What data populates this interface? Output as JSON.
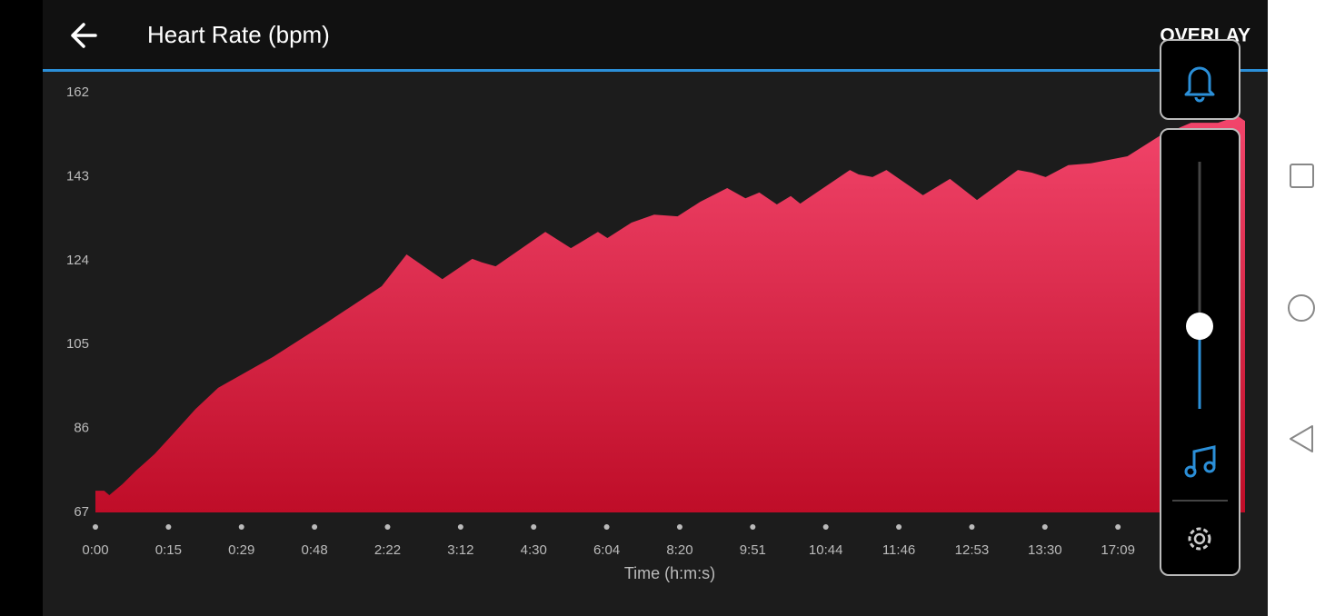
{
  "header": {
    "title": "Heart Rate (bpm)",
    "action": "OVERLAY"
  },
  "chart_data": {
    "type": "area",
    "x_label": "Time (h:m:s)",
    "x": [
      0,
      0.12,
      0.19,
      0.37,
      0.56,
      0.81,
      1.06,
      1.37,
      1.68,
      2.43,
      3.17,
      3.92,
      4.26,
      4.75,
      5.16,
      5.29,
      5.48,
      6.16,
      6.51,
      6.88,
      7.01,
      7.34,
      7.65,
      7.97,
      8.28,
      8.65,
      8.9,
      9.09,
      9.33,
      9.52,
      9.65,
      10.33,
      10.45,
      10.64,
      10.83,
      11.33,
      11.7,
      12.07,
      12.63,
      12.82,
      13.01,
      13.32,
      13.63,
      14.13,
      14.56,
      15.0,
      15.37,
      15.64,
      15.74
    ],
    "values": [
      71.9,
      71.9,
      70.9,
      73.4,
      76.5,
      80.2,
      84.7,
      90.4,
      95.2,
      102.2,
      110,
      118.2,
      125.4,
      119.8,
      124.4,
      123.6,
      122.7,
      130.5,
      126.8,
      130.5,
      129.1,
      132.6,
      134.4,
      134,
      137.3,
      140.4,
      138.1,
      139.4,
      136.7,
      138.6,
      136.9,
      144.5,
      143.5,
      142.9,
      144.5,
      138.8,
      142.5,
      137.7,
      144.5,
      143.9,
      142.9,
      145.6,
      146,
      147.6,
      152.1,
      155.2,
      155.2,
      156.7,
      155.6
    ],
    "color_top": "#f2456b",
    "color_bottom": "#bf0d28",
    "xlim": [
      0,
      15.74
    ],
    "xticks": [
      {
        "value": 0,
        "label": "0:00"
      },
      {
        "value": 1,
        "label": "0:15"
      },
      {
        "value": 2,
        "label": "0:29"
      },
      {
        "value": 3,
        "label": "0:48"
      },
      {
        "value": 4,
        "label": "2:22"
      },
      {
        "value": 5,
        "label": "3:12"
      },
      {
        "value": 6,
        "label": "4:30"
      },
      {
        "value": 7,
        "label": "6:04"
      },
      {
        "value": 8,
        "label": "8:20"
      },
      {
        "value": 9,
        "label": "9:51"
      },
      {
        "value": 10,
        "label": "10:44"
      },
      {
        "value": 11,
        "label": "11:46"
      },
      {
        "value": 12,
        "label": "12:53"
      },
      {
        "value": 13,
        "label": "13:30"
      },
      {
        "value": 14,
        "label": "17:09"
      }
    ],
    "ylim": [
      67,
      162
    ],
    "yticks": [
      67,
      86,
      105,
      124,
      143,
      162
    ]
  }
}
